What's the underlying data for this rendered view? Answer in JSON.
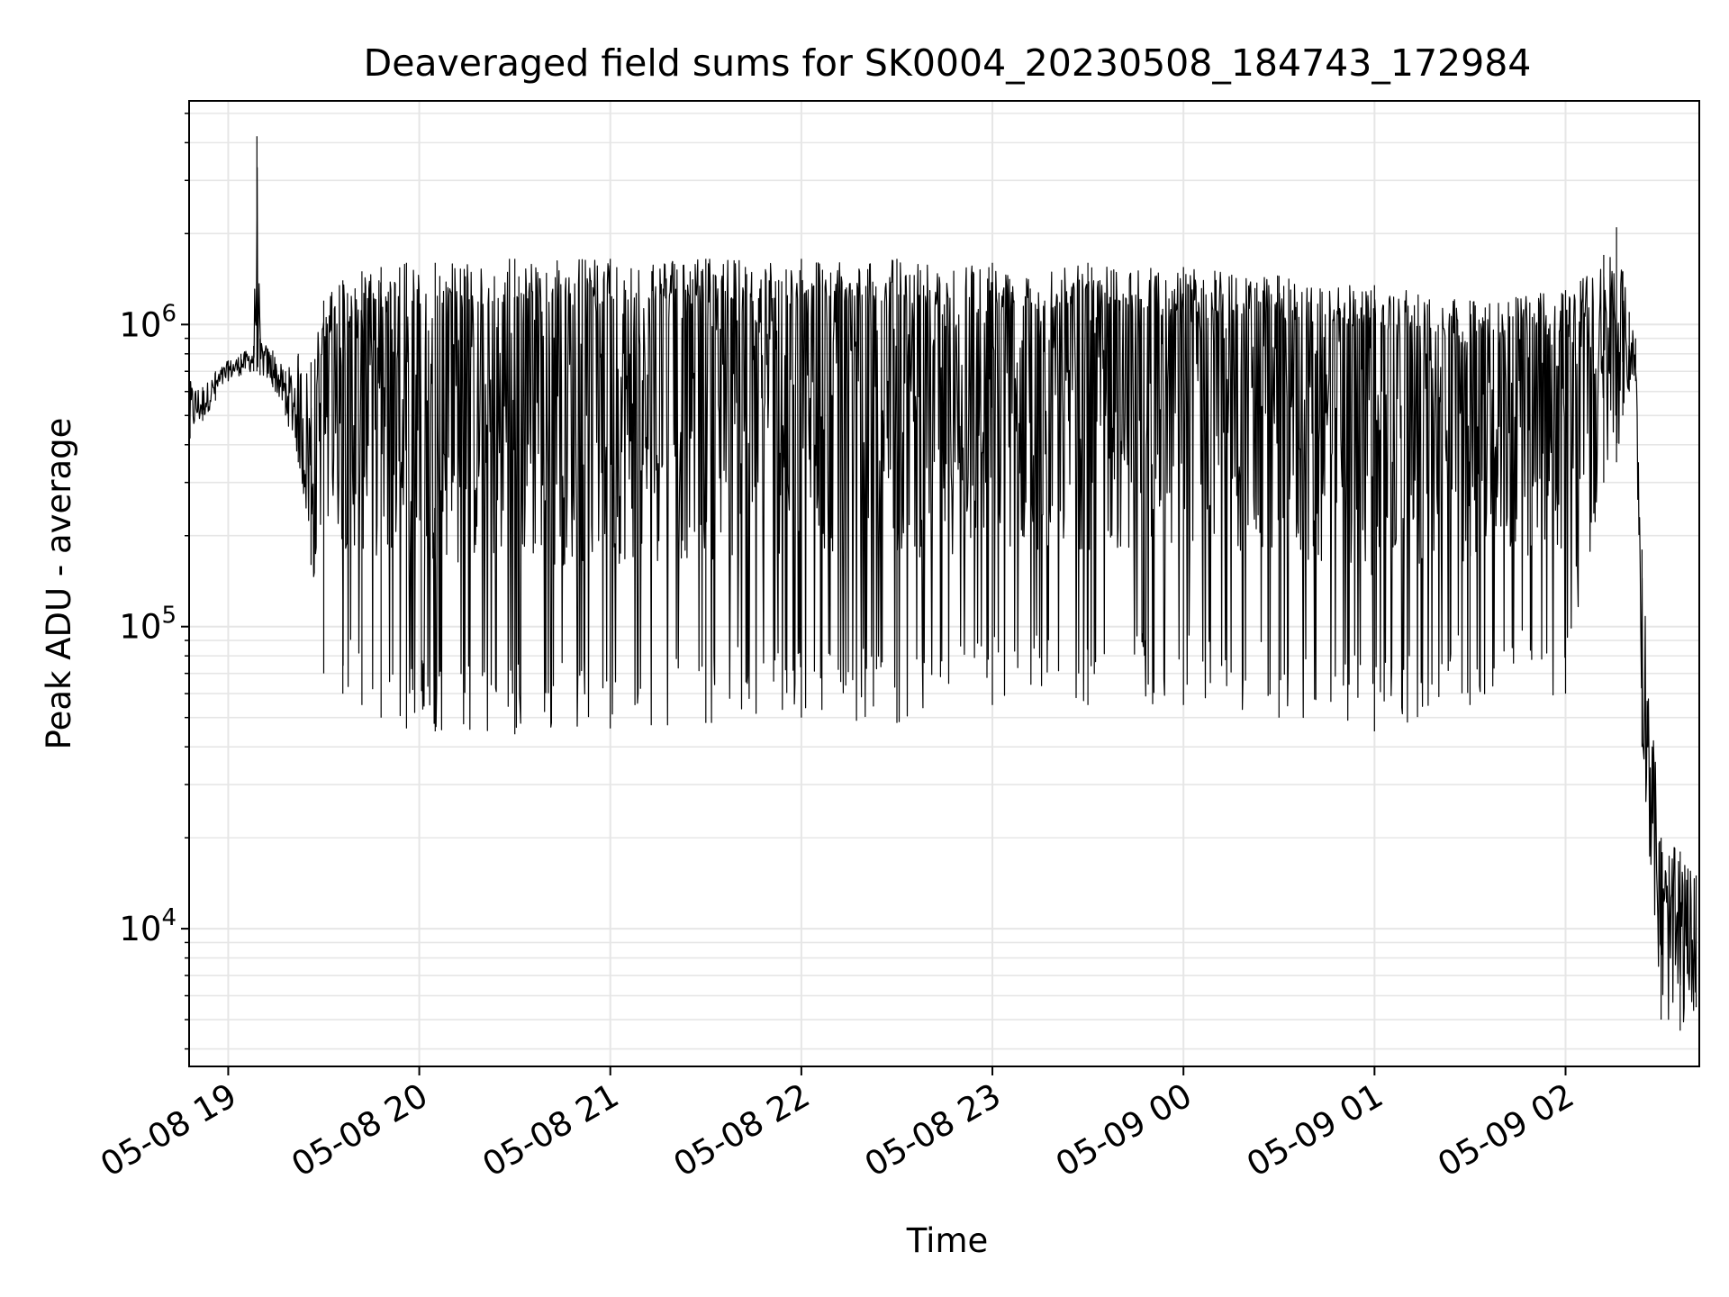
{
  "chart_data": {
    "type": "line",
    "title": "Deaveraged field sums for SK0004_20230508_184743_172984",
    "xlabel": "Time",
    "ylabel": "Peak ADU - average",
    "yscale": "log",
    "grid": true,
    "line_color": "#000000",
    "grid_color": "#e6e6e6",
    "xlim": [
      "2023-05-08 18:47:43",
      "2023-05-09 02:42:00"
    ],
    "ylim": [
      3500,
      5500000
    ],
    "x_ticks": [
      "05-08 19",
      "05-08 20",
      "05-08 21",
      "05-08 22",
      "05-08 23",
      "05-09 00",
      "05-09 01",
      "05-09 02"
    ],
    "y_ticks": [
      {
        "base": "10",
        "exp": "4",
        "value": 10000
      },
      {
        "base": "10",
        "exp": "5",
        "value": 100000
      },
      {
        "base": "10",
        "exp": "6",
        "value": 1000000
      }
    ],
    "series": [
      {
        "x": [
          "2023-05-08 18:48",
          "2023-05-08 18:52",
          "2023-05-08 18:56",
          "2023-05-08 19:00",
          "2023-05-08 19:04",
          "2023-05-08 19:08",
          "2023-05-08 19:09",
          "2023-05-08 19:10",
          "2023-05-08 19:14",
          "2023-05-08 19:18",
          "2023-05-08 19:22",
          "2023-05-08 19:26",
          "2023-05-08 19:30",
          "2023-05-08 19:36",
          "2023-05-08 19:42",
          "2023-05-08 19:48",
          "2023-05-08 19:56",
          "2023-05-08 20:05",
          "2023-05-08 20:30",
          "2023-05-08 21:00",
          "2023-05-08 21:30",
          "2023-05-08 22:00",
          "2023-05-08 22:30",
          "2023-05-08 23:00",
          "2023-05-08 23:30",
          "2023-05-09 00:00",
          "2023-05-09 00:30",
          "2023-05-09 01:00",
          "2023-05-09 01:30",
          "2023-05-09 02:00",
          "2023-05-09 02:12",
          "2023-05-09 02:16",
          "2023-05-09 02:18",
          "2023-05-09 02:20",
          "2023-05-09 02:22",
          "2023-05-09 02:24",
          "2023-05-09 02:30",
          "2023-05-09 02:36",
          "2023-05-09 02:41"
        ],
        "upper": [
          650000,
          620000,
          700000,
          760000,
          800000,
          850000,
          4200000,
          900000,
          820000,
          700000,
          800000,
          750000,
          1200000,
          1400000,
          1500000,
          1550000,
          1600000,
          1600000,
          1650000,
          1650000,
          1650000,
          1650000,
          1650000,
          1600000,
          1600000,
          1550000,
          1450000,
          1350000,
          1200000,
          1300000,
          1700000,
          2100000,
          1500000,
          1100000,
          900000,
          180000,
          20000,
          18000,
          15000
        ],
        "lower": [
          420000,
          480000,
          560000,
          650000,
          680000,
          700000,
          700000,
          680000,
          620000,
          500000,
          350000,
          160000,
          70000,
          60000,
          55000,
          50000,
          46000,
          45000,
          44000,
          46000,
          48000,
          50000,
          48000,
          55000,
          55000,
          55000,
          50000,
          45000,
          55000,
          60000,
          300000,
          350000,
          500000,
          600000,
          650000,
          40000,
          5000,
          4600,
          5500
        ]
      }
    ]
  }
}
